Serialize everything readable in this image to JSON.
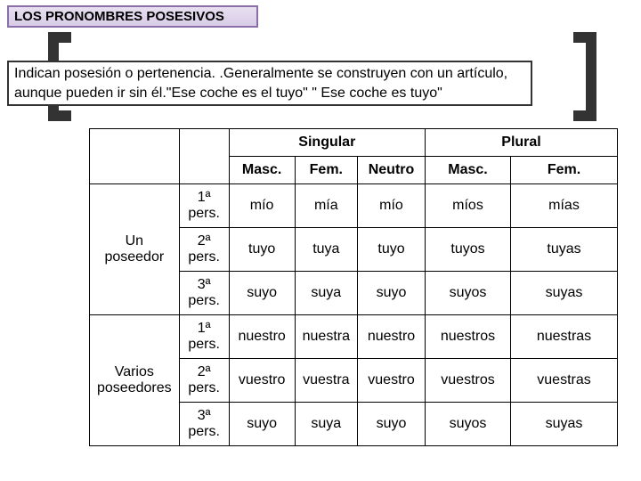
{
  "title": "LOS PRONOMBRES POSESIVOS",
  "description": "Indican posesión o pertenencia. .Generalmente se construyen con un artículo, aunque pueden ir sin él.\"Ese coche es el tuyo\" \" Ese coche es tuyo\"",
  "style": {
    "title_border_color": "#8a6fa8",
    "title_bg_top": "#e8dff0",
    "title_bg_bottom": "#d8cce6",
    "bracket_color": "#333333",
    "desc_border_color": "#333333",
    "table_border_color": "#000000",
    "font_family": "Arial",
    "base_fontsize": 16,
    "title_fontsize": 15
  },
  "table": {
    "top_headers": {
      "singular": "Singular",
      "plural": "Plural"
    },
    "sub_headers": {
      "masc1": "Masc.",
      "fem1": "Fem.",
      "neutro": "Neutro",
      "masc2": "Masc.",
      "fem2": "Fem."
    },
    "possessors": [
      {
        "label": "Un poseedor"
      },
      {
        "label": "Varios poseedores"
      }
    ],
    "persons": [
      "1ª pers.",
      "2ª pers.",
      "3ª pers.",
      "1ª pers.",
      "2ª pers.",
      "3ª pers."
    ],
    "rows": [
      [
        "mío",
        "mía",
        "mío",
        "míos",
        "mías"
      ],
      [
        "tuyo",
        "tuya",
        "tuyo",
        "tuyos",
        "tuyas"
      ],
      [
        "suyo",
        "suya",
        "suyo",
        "suyos",
        "suyas"
      ],
      [
        "nuestro",
        "nuestra",
        "nuestro",
        "nuestros",
        "nuestras"
      ],
      [
        "vuestro",
        "vuestra",
        "vuestro",
        "vuestros",
        "vuestras"
      ],
      [
        "suyo",
        "suya",
        "suyo",
        "suyos",
        "suyas"
      ]
    ]
  }
}
